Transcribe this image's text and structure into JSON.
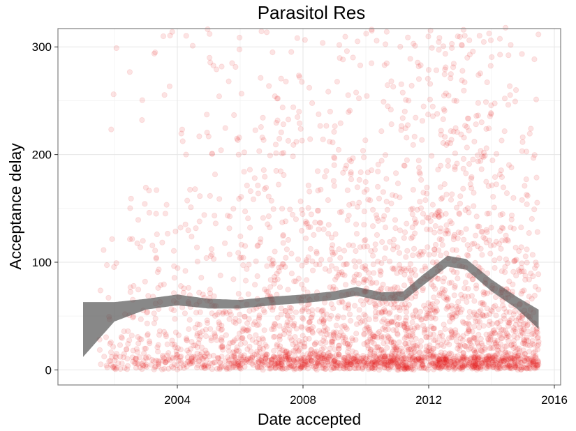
{
  "chart_data": {
    "type": "scatter",
    "title": "Parasitol Res",
    "xlabel": "Date accepted",
    "ylabel": "Acceptance delay",
    "xlim": [
      2000.2,
      2016.2
    ],
    "ylim": [
      -14,
      317
    ],
    "xticks": [
      2004,
      2008,
      2012,
      2016
    ],
    "yticks": [
      0,
      100,
      200,
      300
    ],
    "grid": true,
    "legend": "none",
    "point_color": "#e41a1c",
    "point_opacity": 0.12,
    "smooth_band_color": "#555555",
    "smooth_band_opacity": 0.7,
    "point_density": {
      "x_start": 2001.5,
      "x_end": 2015.5,
      "relative_density_by_year": [
        {
          "x": 2001.5,
          "w": 0.15
        },
        {
          "x": 2002.5,
          "w": 0.35
        },
        {
          "x": 2003.5,
          "w": 0.45
        },
        {
          "x": 2004.5,
          "w": 0.6
        },
        {
          "x": 2005.5,
          "w": 0.85
        },
        {
          "x": 2006.5,
          "w": 0.95
        },
        {
          "x": 2007.5,
          "w": 1.0
        },
        {
          "x": 2008.5,
          "w": 1.05
        },
        {
          "x": 2009.5,
          "w": 1.1
        },
        {
          "x": 2010.5,
          "w": 1.25
        },
        {
          "x": 2011.5,
          "w": 1.45
        },
        {
          "x": 2012.5,
          "w": 1.5
        },
        {
          "x": 2013.5,
          "w": 1.45
        },
        {
          "x": 2014.5,
          "w": 1.4
        },
        {
          "x": 2015.5,
          "w": 1.3
        }
      ],
      "delay_distribution_peak": 8,
      "delay_distribution_mean_by_year": [
        {
          "x": 2001.5,
          "m": 45
        },
        {
          "x": 2004.0,
          "m": 60
        },
        {
          "x": 2007.0,
          "m": 60
        },
        {
          "x": 2009.5,
          "m": 70
        },
        {
          "x": 2011.0,
          "m": 68
        },
        {
          "x": 2012.6,
          "m": 100
        },
        {
          "x": 2014.0,
          "m": 75
        },
        {
          "x": 2015.5,
          "m": 48
        }
      ]
    },
    "smooth_band": [
      {
        "x": 2001.0,
        "lo": 12,
        "hi": 63
      },
      {
        "x": 2002.0,
        "lo": 45,
        "hi": 63
      },
      {
        "x": 2003.0,
        "lo": 56,
        "hi": 66
      },
      {
        "x": 2004.0,
        "lo": 60,
        "hi": 70
      },
      {
        "x": 2005.0,
        "lo": 57,
        "hi": 66
      },
      {
        "x": 2006.0,
        "lo": 57,
        "hi": 65
      },
      {
        "x": 2007.0,
        "lo": 60,
        "hi": 68
      },
      {
        "x": 2008.0,
        "lo": 62,
        "hi": 70
      },
      {
        "x": 2009.0,
        "lo": 65,
        "hi": 73
      },
      {
        "x": 2009.7,
        "lo": 69,
        "hi": 77
      },
      {
        "x": 2010.5,
        "lo": 64,
        "hi": 72
      },
      {
        "x": 2011.2,
        "lo": 64,
        "hi": 73
      },
      {
        "x": 2011.8,
        "lo": 78,
        "hi": 88
      },
      {
        "x": 2012.6,
        "lo": 96,
        "hi": 106
      },
      {
        "x": 2013.2,
        "lo": 93,
        "hi": 103
      },
      {
        "x": 2014.0,
        "lo": 73,
        "hi": 84
      },
      {
        "x": 2014.8,
        "lo": 57,
        "hi": 68
      },
      {
        "x": 2015.5,
        "lo": 38,
        "hi": 56
      }
    ]
  }
}
